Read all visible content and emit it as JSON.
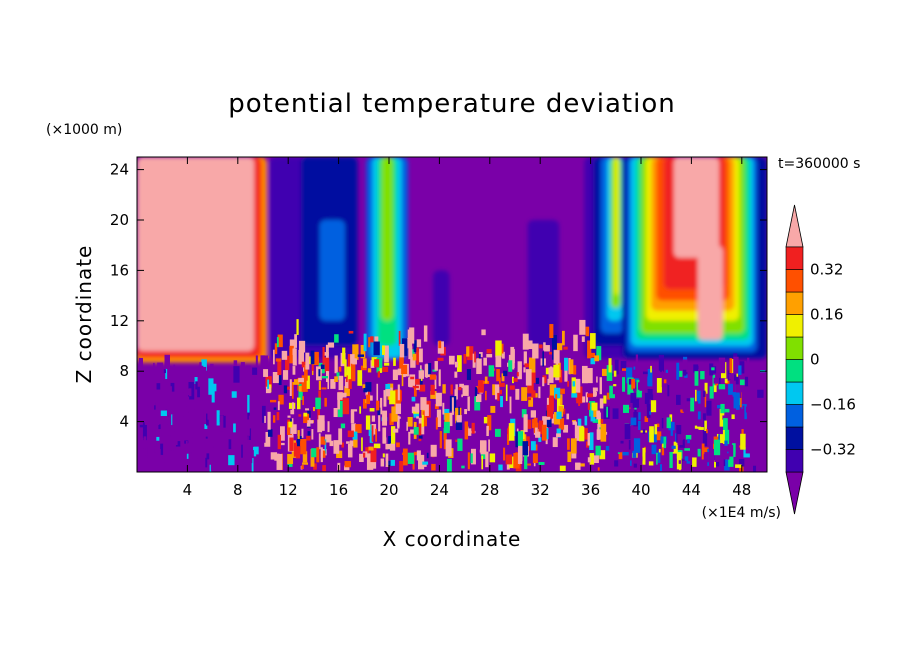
{
  "chart_data": {
    "type": "heatmap",
    "title": "potential temperature deviation",
    "xlabel": "X coordinate",
    "ylabel": "Z coordinate",
    "x_unit": "(×1E4 m/s)",
    "y_unit": "(×1000 m)",
    "time_label": "t=360000 s",
    "xlim": [
      0,
      50
    ],
    "ylim": [
      0,
      25
    ],
    "x_ticks": [
      4,
      8,
      12,
      16,
      20,
      24,
      28,
      32,
      36,
      40,
      44,
      48
    ],
    "y_ticks": [
      4,
      8,
      12,
      16,
      20,
      24
    ],
    "colorbar": {
      "levels": [
        -0.4,
        -0.32,
        -0.24,
        -0.16,
        -0.08,
        0,
        0.08,
        0.16,
        0.24,
        0.32,
        0.4
      ],
      "labeled_ticks": [
        "0.32",
        "0.16",
        "0",
        "−0.16",
        "−0.32"
      ],
      "labeled_values": [
        0.32,
        0.16,
        0,
        -0.16,
        -0.32
      ],
      "colors": [
        "#7a00a8",
        "#4000b0",
        "#0010a0",
        "#0060e0",
        "#00c8f0",
        "#00e080",
        "#80e000",
        "#f0f000",
        "#ffa000",
        "#ff5000",
        "#f02020",
        "#f8a8a8"
      ],
      "extend": "both"
    }
  }
}
